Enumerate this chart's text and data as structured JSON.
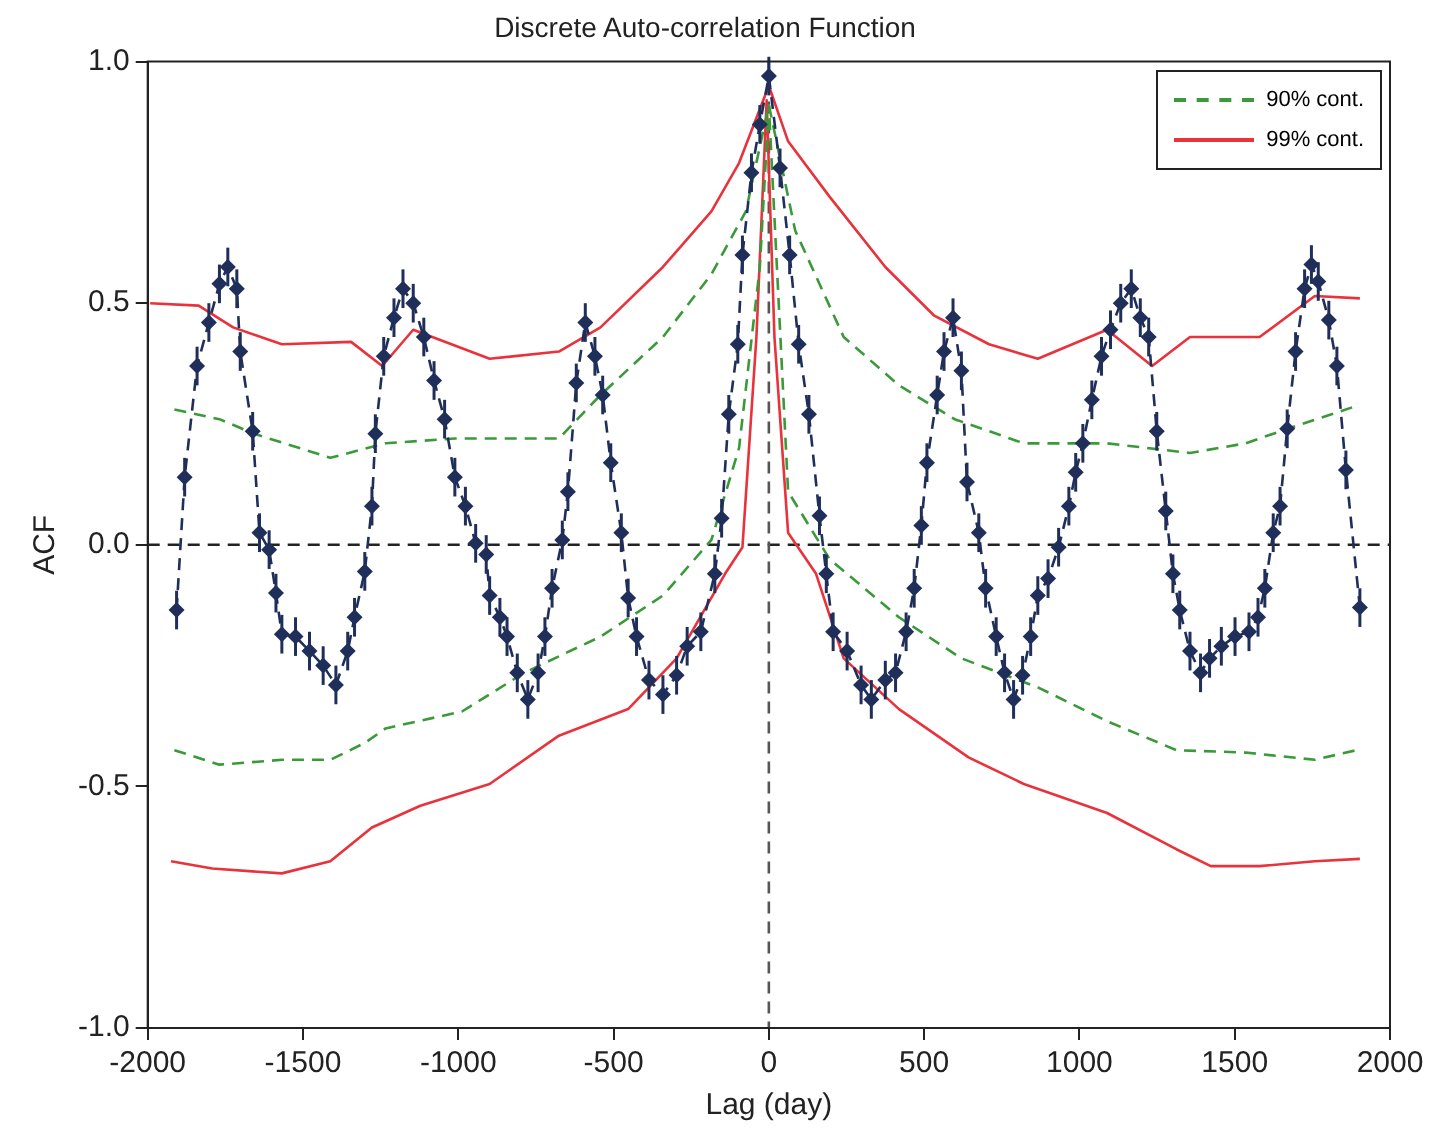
{
  "chart_data": {
    "type": "line",
    "title": "Discrete Auto-correlation Function",
    "xlabel": "Lag (day)",
    "ylabel": "ACF",
    "xlim": [
      -2000,
      2000
    ],
    "xticks": [
      -2000,
      -1500,
      -1000,
      -500,
      0,
      500,
      1000,
      1500,
      2000
    ],
    "ylim": [
      -1,
      1
    ],
    "yticks": [
      {
        "value": -1,
        "label": "-1.0"
      },
      {
        "value": -0.5,
        "label": "-0.5"
      },
      {
        "value": 0,
        "label": "0.0"
      },
      {
        "value": 0.5,
        "label": "0.5"
      },
      {
        "value": 1,
        "label": "1.0"
      }
    ],
    "grid": false,
    "legend": "top right",
    "ref_lines": [
      {
        "axis": "y",
        "value": 0,
        "color": "#222222",
        "line_style": "dashed"
      },
      {
        "axis": "x",
        "value": 0,
        "color": "#555555",
        "line_style": "dashed"
      }
    ],
    "series": [
      {
        "color": "#1f2f5a",
        "marker": "diamond",
        "line_style": "dashed",
        "x": [
          -1907,
          -1881,
          -1841,
          -1803,
          -1769,
          -1742,
          -1713,
          -1702,
          -1662,
          -1640,
          -1609,
          -1587,
          -1568,
          -1524,
          -1479,
          -1435,
          -1394,
          -1356,
          -1334,
          -1301,
          -1278,
          -1267,
          -1240,
          -1207,
          -1178,
          -1145,
          -1111,
          -1078,
          -1044,
          -1011,
          -977,
          -944,
          -910,
          -899,
          -866,
          -843,
          -810,
          -776,
          -743,
          -721,
          -698,
          -665,
          -647,
          -620,
          -591,
          -560,
          -535,
          -509,
          -475,
          -453,
          -426,
          -386,
          -341,
          -297,
          -263,
          -219,
          -174,
          -152,
          -129,
          -100,
          -85,
          -56,
          -29,
          0,
          36,
          67,
          96,
          129,
          163,
          185,
          207,
          252,
          297,
          330,
          375,
          408,
          442,
          468,
          491,
          509,
          542,
          564,
          593,
          620,
          638,
          676,
          698,
          732,
          759,
          788,
          817,
          843,
          866,
          899,
          933,
          966,
          988,
          1011,
          1040,
          1071,
          1100,
          1133,
          1167,
          1196,
          1223,
          1249,
          1278,
          1301,
          1323,
          1356,
          1390,
          1419,
          1457,
          1501,
          1546,
          1575,
          1597,
          1624,
          1646,
          1669,
          1696,
          1725,
          1747,
          1769,
          1803,
          1829,
          1858,
          1903
        ],
        "values": [
          -0.135,
          0.14,
          0.37,
          0.46,
          0.54,
          0.575,
          0.53,
          0.4,
          0.235,
          0.025,
          -0.01,
          -0.1,
          -0.185,
          -0.19,
          -0.22,
          -0.25,
          -0.29,
          -0.22,
          -0.15,
          -0.055,
          0.08,
          0.23,
          0.39,
          0.47,
          0.53,
          0.5,
          0.43,
          0.34,
          0.26,
          0.14,
          0.08,
          0.003,
          -0.02,
          -0.105,
          -0.15,
          -0.19,
          -0.265,
          -0.32,
          -0.265,
          -0.19,
          -0.09,
          0.01,
          0.11,
          0.335,
          0.46,
          0.39,
          0.31,
          0.17,
          0.025,
          -0.11,
          -0.19,
          -0.28,
          -0.31,
          -0.27,
          -0.21,
          -0.18,
          -0.06,
          0.055,
          0.27,
          0.415,
          0.6,
          0.77,
          0.87,
          0.97,
          0.78,
          0.6,
          0.415,
          0.27,
          0.06,
          -0.06,
          -0.18,
          -0.22,
          -0.29,
          -0.32,
          -0.28,
          -0.265,
          -0.18,
          -0.09,
          0.04,
          0.17,
          0.31,
          0.4,
          0.47,
          0.36,
          0.13,
          0.025,
          -0.09,
          -0.19,
          -0.265,
          -0.32,
          -0.27,
          -0.19,
          -0.105,
          -0.07,
          -0.005,
          0.08,
          0.15,
          0.21,
          0.3,
          0.39,
          0.445,
          0.5,
          0.53,
          0.47,
          0.43,
          0.235,
          0.07,
          -0.06,
          -0.135,
          -0.22,
          -0.265,
          -0.235,
          -0.21,
          -0.19,
          -0.18,
          -0.15,
          -0.09,
          0.025,
          0.08,
          0.24,
          0.4,
          0.53,
          0.58,
          0.545,
          0.465,
          0.37,
          0.155,
          -0.13
        ],
        "errors": [
          0.04,
          0.04,
          0.04,
          0.04,
          0.04,
          0.04,
          0.04,
          0.04,
          0.04,
          0.04,
          0.04,
          0.04,
          0.04,
          0.04,
          0.04,
          0.04,
          0.04,
          0.04,
          0.04,
          0.04,
          0.04,
          0.04,
          0.04,
          0.04,
          0.04,
          0.04,
          0.04,
          0.04,
          0.04,
          0.04,
          0.04,
          0.04,
          0.04,
          0.04,
          0.04,
          0.04,
          0.04,
          0.04,
          0.04,
          0.04,
          0.04,
          0.04,
          0.04,
          0.04,
          0.04,
          0.04,
          0.04,
          0.04,
          0.04,
          0.04,
          0.04,
          0.04,
          0.04,
          0.04,
          0.04,
          0.04,
          0.04,
          0.04,
          0.04,
          0.04,
          0.04,
          0.04,
          0.04,
          0.04,
          0.04,
          0.04,
          0.04,
          0.04,
          0.04,
          0.04,
          0.04,
          0.04,
          0.04,
          0.04,
          0.04,
          0.04,
          0.04,
          0.04,
          0.04,
          0.04,
          0.04,
          0.04,
          0.04,
          0.04,
          0.04,
          0.04,
          0.04,
          0.04,
          0.04,
          0.04,
          0.04,
          0.04,
          0.04,
          0.04,
          0.04,
          0.04,
          0.04,
          0.04,
          0.04,
          0.04,
          0.04,
          0.04,
          0.04,
          0.04,
          0.04,
          0.04,
          0.04,
          0.04,
          0.04,
          0.04,
          0.04,
          0.04,
          0.04,
          0.04,
          0.04,
          0.04,
          0.04,
          0.04,
          0.04,
          0.04,
          0.04,
          0.04,
          0.04,
          0.04,
          0.04,
          0.04,
          0.04,
          0.04
        ]
      },
      {
        "name": "90% cont.",
        "color": "#3a9a3a",
        "line_style": "dashed",
        "x": [
          -1914,
          -1769,
          -1658,
          -1412,
          -1234,
          -1011,
          -676,
          -542,
          -341,
          -185,
          -74,
          0,
          85,
          241,
          419,
          598,
          821,
          1089,
          1356,
          1535,
          1669,
          1881
        ],
        "values": [
          0.28,
          0.26,
          0.23,
          0.18,
          0.21,
          0.22,
          0.22,
          0.31,
          0.43,
          0.56,
          0.69,
          0.91,
          0.65,
          0.43,
          0.33,
          0.26,
          0.21,
          0.21,
          0.19,
          0.21,
          0.24,
          0.285
        ]
      },
      {
        "color": "#3a9a3a",
        "line_style": "dashed",
        "x": [
          -1914,
          -1769,
          -1568,
          -1412,
          -1301,
          -1234,
          -988,
          -788,
          -542,
          -341,
          -185,
          -96,
          -29,
          0,
          62,
          196,
          419,
          620,
          866,
          1089,
          1312,
          1535,
          1758,
          1892
        ],
        "values": [
          -0.425,
          -0.455,
          -0.445,
          -0.445,
          -0.41,
          -0.38,
          -0.345,
          -0.265,
          -0.19,
          -0.105,
          0.01,
          0.2,
          0.575,
          0.91,
          0.11,
          -0.03,
          -0.15,
          -0.235,
          -0.295,
          -0.365,
          -0.425,
          -0.43,
          -0.445,
          -0.425
        ]
      },
      {
        "name": "99% cont.",
        "color": "#e8323c",
        "line_style": "solid",
        "x": [
          -1992,
          -1836,
          -1725,
          -1568,
          -1345,
          -1245,
          -1145,
          -899,
          -676,
          -542,
          -341,
          -185,
          -96,
          -18,
          0,
          62,
          196,
          375,
          531,
          709,
          866,
          1089,
          1234,
          1356,
          1580,
          1758,
          1903
        ],
        "values": [
          0.5,
          0.495,
          0.45,
          0.415,
          0.42,
          0.37,
          0.445,
          0.385,
          0.4,
          0.45,
          0.575,
          0.69,
          0.79,
          0.92,
          0.95,
          0.835,
          0.72,
          0.575,
          0.475,
          0.415,
          0.385,
          0.445,
          0.37,
          0.43,
          0.43,
          0.515,
          0.51
        ]
      },
      {
        "color": "#e8323c",
        "line_style": "solid",
        "x": [
          -1925,
          -1792,
          -1568,
          -1412,
          -1278,
          -1122,
          -899,
          -676,
          -453,
          -297,
          -141,
          -85,
          -40,
          -7,
          18,
          62,
          152,
          241,
          419,
          643,
          821,
          1089,
          1312,
          1423,
          1580,
          1758,
          1903
        ],
        "values": [
          -0.655,
          -0.67,
          -0.68,
          -0.655,
          -0.585,
          -0.54,
          -0.495,
          -0.395,
          -0.34,
          -0.235,
          -0.06,
          -0.005,
          0.43,
          0.92,
          0.43,
          0.025,
          -0.06,
          -0.235,
          -0.34,
          -0.44,
          -0.495,
          -0.555,
          -0.63,
          -0.665,
          -0.665,
          -0.655,
          -0.65
        ]
      }
    ]
  }
}
